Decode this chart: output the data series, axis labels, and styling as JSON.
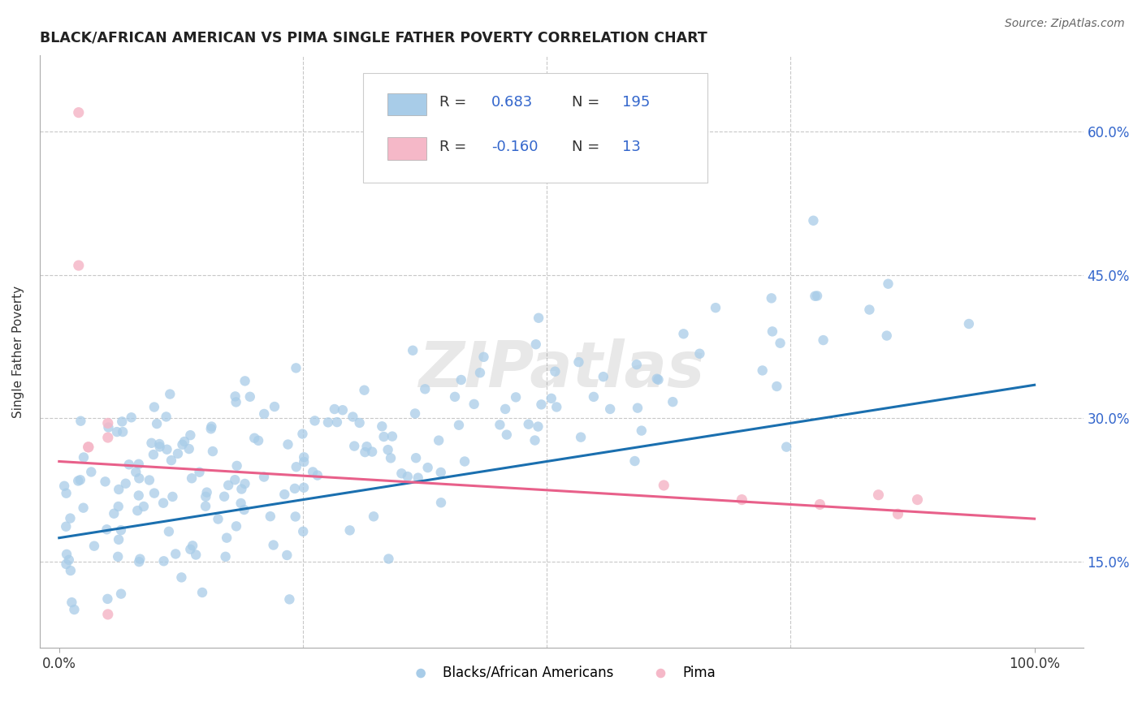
{
  "title": "BLACK/AFRICAN AMERICAN VS PIMA SINGLE FATHER POVERTY CORRELATION CHART",
  "source": "Source: ZipAtlas.com",
  "ylabel": "Single Father Poverty",
  "blue_R": 0.683,
  "blue_N": 195,
  "pink_R": -0.16,
  "pink_N": 13,
  "blue_fill": "#a8cce8",
  "pink_fill": "#f5b8c8",
  "blue_line_color": "#1a6faf",
  "pink_line_color": "#e8608a",
  "legend_color": "#3366cc",
  "watermark": "ZIPatlas",
  "xlim": [
    -0.02,
    1.05
  ],
  "ylim": [
    0.06,
    0.68
  ],
  "x_ticks": [
    0.0,
    1.0
  ],
  "x_tick_labels": [
    "0.0%",
    "100.0%"
  ],
  "y_ticks": [
    0.15,
    0.3,
    0.45,
    0.6
  ],
  "y_tick_labels": [
    "15.0%",
    "30.0%",
    "45.0%",
    "60.0%"
  ],
  "blue_line_y_start": 0.175,
  "blue_line_y_end": 0.335,
  "pink_line_y_start": 0.255,
  "pink_line_y_end": 0.195,
  "pink_x": [
    0.02,
    0.02,
    0.05,
    0.05,
    0.05,
    0.62,
    0.7,
    0.78,
    0.84,
    0.86,
    0.88,
    0.03,
    0.03
  ],
  "pink_y": [
    0.62,
    0.46,
    0.295,
    0.28,
    0.095,
    0.23,
    0.215,
    0.21,
    0.22,
    0.2,
    0.215,
    0.27,
    0.27
  ]
}
